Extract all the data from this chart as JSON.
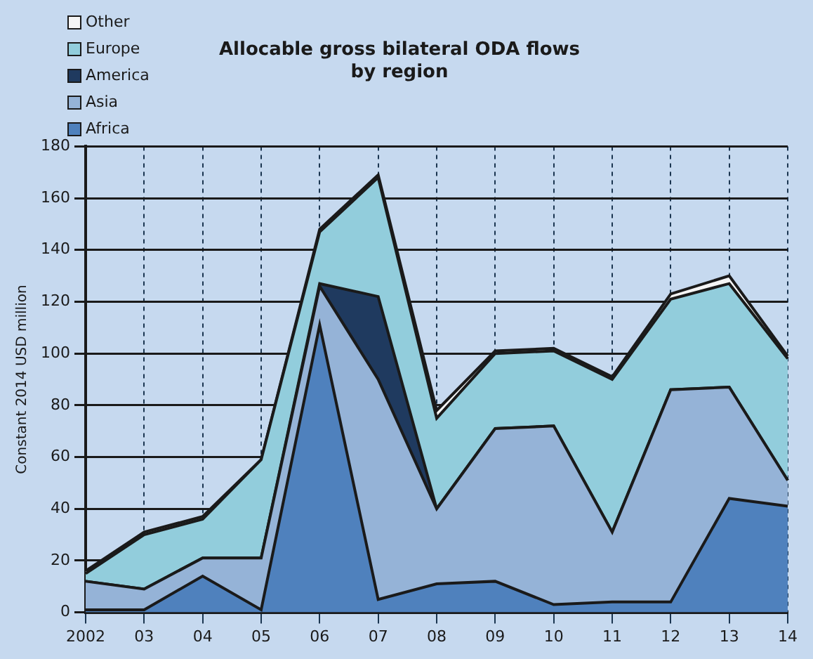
{
  "chart_data": {
    "type": "area",
    "stacked": true,
    "title": "Allocable gross bilateral ODA flows\nby region",
    "ylabel": "Constant 2014 USD million",
    "categories": [
      "2002",
      "03",
      "04",
      "05",
      "06",
      "07",
      "08",
      "09",
      "10",
      "11",
      "12",
      "13",
      "14"
    ],
    "series": [
      {
        "name": "Africa",
        "color": "#4f81bd",
        "values": [
          1,
          1,
          14,
          1,
          111,
          5,
          11,
          12,
          3,
          4,
          4,
          44,
          41
        ]
      },
      {
        "name": "Asia",
        "color": "#95b3d7",
        "values": [
          11,
          8,
          7,
          20,
          15,
          85,
          29,
          59,
          69,
          27,
          82,
          43,
          10
        ]
      },
      {
        "name": "America",
        "color": "#1f3a5f",
        "values": [
          0,
          0,
          0,
          0,
          1,
          32,
          0,
          0,
          0,
          0,
          0,
          0,
          0
        ]
      },
      {
        "name": "Europe",
        "color": "#92cddc",
        "values": [
          3,
          21,
          15,
          38,
          20,
          46,
          35,
          29,
          29,
          59,
          35,
          40,
          47
        ]
      },
      {
        "name": "Other",
        "color": "#f5f5f5",
        "values": [
          1,
          1,
          1,
          0,
          1,
          1,
          3,
          1,
          1,
          1,
          2,
          3,
          1
        ]
      }
    ],
    "ylim": [
      0,
      180
    ],
    "yticks": [
      0,
      20,
      40,
      60,
      80,
      100,
      120,
      140,
      160,
      180
    ],
    "grid": true,
    "legend": "top left"
  }
}
